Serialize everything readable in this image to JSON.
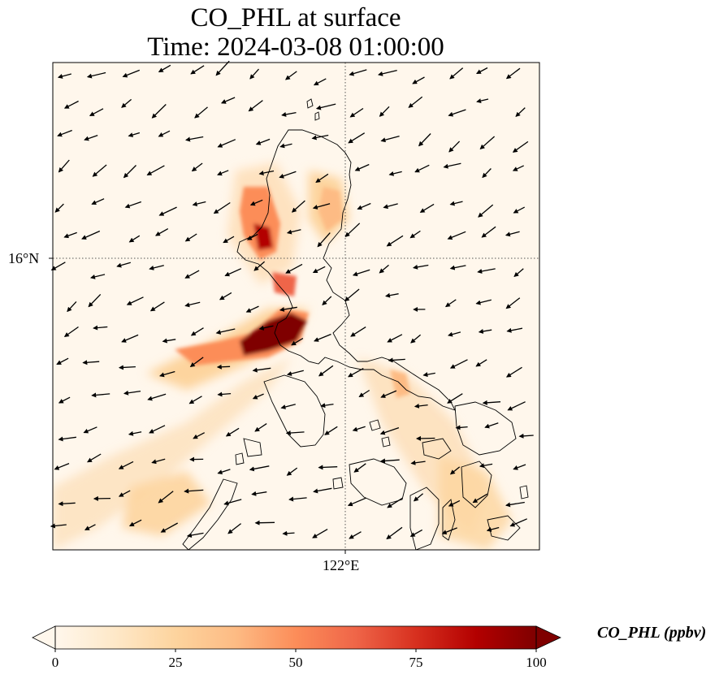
{
  "title": {
    "line1": "CO_PHL at surface",
    "line2": "Time: 2024-03-08 01:00:00"
  },
  "axes": {
    "lat_tick": "16°N",
    "lon_tick": "122°E"
  },
  "colorbar": {
    "label": "CO_PHL (ppbv)",
    "ticks": [
      "0",
      "25",
      "50",
      "75",
      "100"
    ],
    "min": 0,
    "max": 100,
    "colormap": "OrRd",
    "colors": [
      "#fff7ec",
      "#fee8c8",
      "#fdd49e",
      "#fdbb84",
      "#fc8d59",
      "#ef6548",
      "#d7301f",
      "#b30000",
      "#7f0000"
    ]
  },
  "map": {
    "background": "#fff7ec",
    "coastline_color": "#000000",
    "gridline_style": "dotted",
    "vector_field": "wind arrows pointing mostly toward the southwest"
  }
}
